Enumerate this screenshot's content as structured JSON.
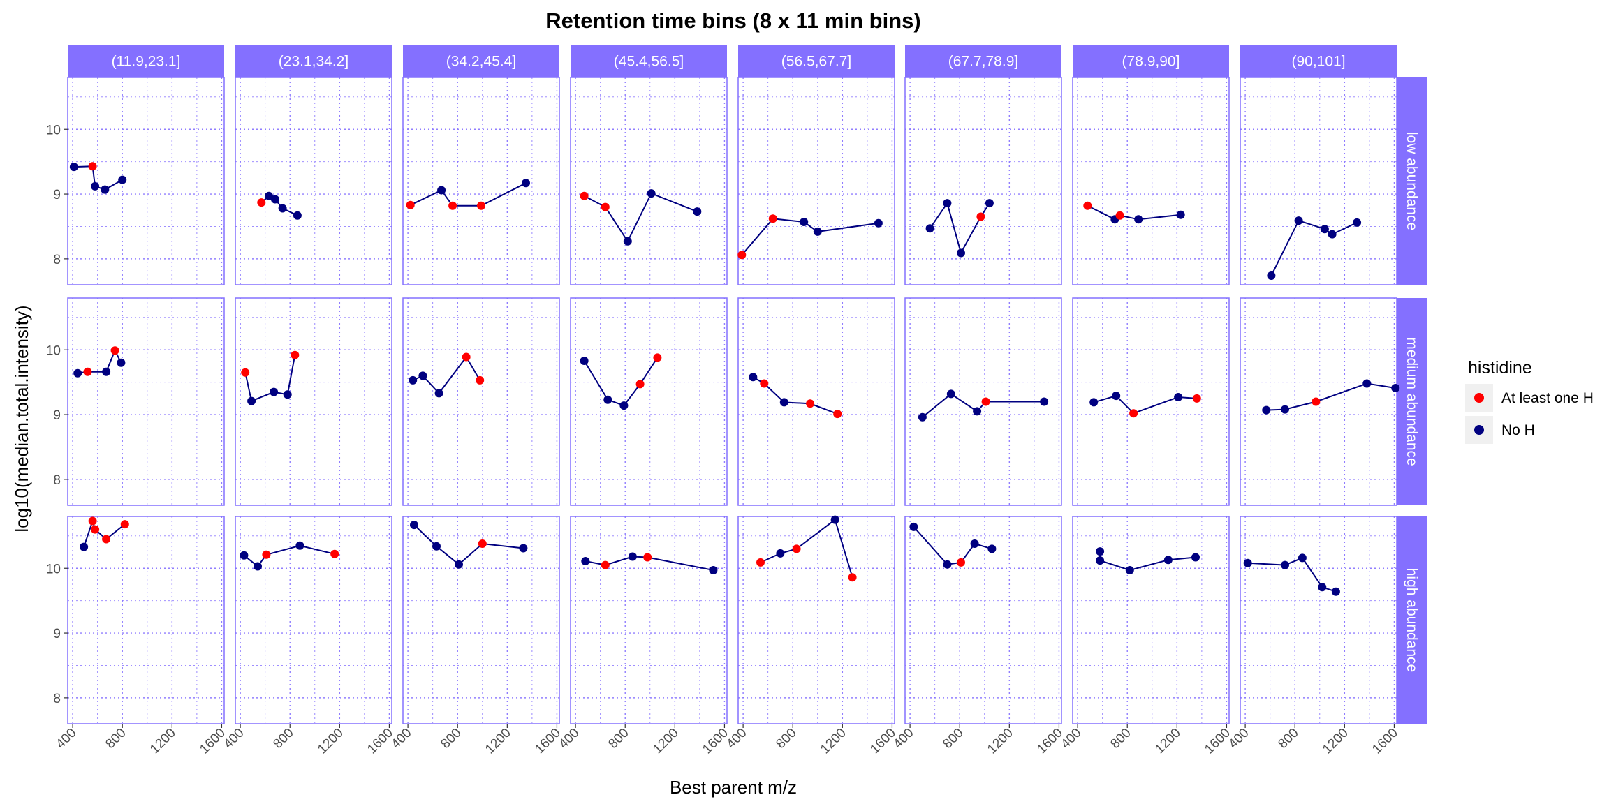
{
  "chart_data": {
    "type": "line",
    "title": "Retention time bins (8 x 11 min bins)",
    "xlabel": "Best parent m/z",
    "ylabel": "log10(median.total.intensity)",
    "xlim": [
      360,
      1620
    ],
    "x_ticks": [
      "400",
      "800",
      "1200",
      "1600"
    ],
    "x_tick_values": [
      400,
      800,
      1200,
      1600
    ],
    "y_ticks": [
      "8",
      "9",
      "10"
    ],
    "y_tick_values": [
      8,
      9,
      10
    ],
    "grid": "dotted",
    "legend": {
      "title": "histidine",
      "position": "right",
      "entries": [
        {
          "label": "At least one H",
          "color": "#ff0000"
        },
        {
          "label": "No H",
          "color": "#000080"
        }
      ]
    },
    "colors": {
      "At least one H": "#ff0000",
      "No H": "#000080",
      "strip": "#8470ff",
      "panel_border": "#8470ff",
      "grid": "#8470ff"
    },
    "columns": [
      "(11.9,23.1]",
      "(23.1,34.2]",
      "(34.2,45.4]",
      "(45.4,56.5]",
      "(56.5,67.7]",
      "(67.7,78.9]",
      "(78.9,90]",
      "(90,101]"
    ],
    "rows": [
      {
        "label": "low abundance",
        "ylim": [
          7.6,
          10.8
        ]
      },
      {
        "label": "medium abundance",
        "ylim": [
          7.6,
          10.8
        ]
      },
      {
        "label": "high abundance",
        "ylim": [
          7.6,
          10.8
        ]
      }
    ],
    "panels": [
      [
        [
          [
            410,
            9.42,
            "No H"
          ],
          [
            560,
            9.43,
            "At least one H"
          ],
          [
            580,
            9.12,
            "No H"
          ],
          [
            660,
            9.07,
            "No H"
          ],
          [
            800,
            9.22,
            "No H"
          ]
        ],
        [
          [
            570,
            8.87,
            "At least one H"
          ],
          [
            630,
            8.97,
            "No H"
          ],
          [
            680,
            8.92,
            "No H"
          ],
          [
            740,
            8.78,
            "No H"
          ],
          [
            860,
            8.67,
            "No H"
          ]
        ],
        [
          [
            420,
            8.83,
            "At least one H"
          ],
          [
            670,
            9.06,
            "No H"
          ],
          [
            760,
            8.82,
            "At least one H"
          ],
          [
            990,
            8.82,
            "At least one H"
          ],
          [
            1350,
            9.17,
            "No H"
          ]
        ],
        [
          [
            470,
            8.97,
            "At least one H"
          ],
          [
            640,
            8.8,
            "At least one H"
          ],
          [
            820,
            8.27,
            "No H"
          ],
          [
            1010,
            9.01,
            "No H"
          ],
          [
            1380,
            8.73,
            "No H"
          ]
        ],
        [
          [
            390,
            8.06,
            "At least one H"
          ],
          [
            640,
            8.62,
            "At least one H"
          ],
          [
            890,
            8.57,
            "No H"
          ],
          [
            1000,
            8.42,
            "No H"
          ],
          [
            1490,
            8.55,
            "No H"
          ]
        ],
        [
          [
            560,
            8.47,
            "No H"
          ],
          [
            700,
            8.86,
            "No H"
          ],
          [
            810,
            8.09,
            "No H"
          ],
          [
            970,
            8.65,
            "At least one H"
          ],
          [
            1040,
            8.86,
            "No H"
          ]
        ],
        [
          [
            480,
            8.82,
            "At least one H"
          ],
          [
            700,
            8.61,
            "No H"
          ],
          [
            740,
            8.67,
            "At least one H"
          ],
          [
            890,
            8.61,
            "No H"
          ],
          [
            1230,
            8.68,
            "No H"
          ]
        ],
        [
          [
            610,
            7.74,
            "No H"
          ],
          [
            830,
            8.59,
            "No H"
          ],
          [
            1040,
            8.46,
            "No H"
          ],
          [
            1100,
            8.38,
            "No H"
          ],
          [
            1300,
            8.56,
            "No H"
          ]
        ]
      ],
      [
        [
          [
            440,
            9.64,
            "No H"
          ],
          [
            520,
            9.66,
            "At least one H"
          ],
          [
            670,
            9.66,
            "No H"
          ],
          [
            740,
            9.99,
            "At least one H"
          ],
          [
            790,
            9.8,
            "No H"
          ]
        ],
        [
          [
            440,
            9.65,
            "At least one H"
          ],
          [
            490,
            9.21,
            "No H"
          ],
          [
            670,
            9.35,
            "No H"
          ],
          [
            780,
            9.31,
            "No H"
          ],
          [
            840,
            9.92,
            "At least one H"
          ]
        ],
        [
          [
            440,
            9.53,
            "No H"
          ],
          [
            520,
            9.6,
            "No H"
          ],
          [
            650,
            9.33,
            "No H"
          ],
          [
            870,
            9.89,
            "At least one H"
          ],
          [
            980,
            9.53,
            "At least one H"
          ]
        ],
        [
          [
            470,
            9.83,
            "No H"
          ],
          [
            660,
            9.23,
            "No H"
          ],
          [
            790,
            9.14,
            "No H"
          ],
          [
            920,
            9.47,
            "At least one H"
          ],
          [
            1060,
            9.88,
            "At least one H"
          ]
        ],
        [
          [
            480,
            9.58,
            "No H"
          ],
          [
            570,
            9.48,
            "At least one H"
          ],
          [
            730,
            9.19,
            "No H"
          ],
          [
            940,
            9.17,
            "At least one H"
          ],
          [
            1160,
            9.01,
            "At least one H"
          ]
        ],
        [
          [
            500,
            8.96,
            "No H"
          ],
          [
            730,
            9.32,
            "No H"
          ],
          [
            940,
            9.05,
            "No H"
          ],
          [
            1010,
            9.2,
            "At least one H"
          ],
          [
            1480,
            9.2,
            "No H"
          ]
        ],
        [
          [
            530,
            9.19,
            "No H"
          ],
          [
            710,
            9.29,
            "No H"
          ],
          [
            850,
            9.02,
            "At least one H"
          ],
          [
            1210,
            9.27,
            "No H"
          ],
          [
            1360,
            9.25,
            "At least one H"
          ]
        ],
        [
          [
            570,
            9.07,
            "No H"
          ],
          [
            720,
            9.08,
            "No H"
          ],
          [
            970,
            9.2,
            "At least one H"
          ],
          [
            1380,
            9.48,
            "No H"
          ],
          [
            1610,
            9.41,
            "No H"
          ]
        ]
      ],
      [
        [
          [
            490,
            10.33,
            "No H"
          ],
          [
            560,
            10.73,
            "At least one H"
          ],
          [
            580,
            10.6,
            "At least one H"
          ],
          [
            670,
            10.45,
            "At least one H"
          ],
          [
            820,
            10.68,
            "At least one H"
          ]
        ],
        [
          [
            430,
            10.2,
            "No H"
          ],
          [
            540,
            10.03,
            "No H"
          ],
          [
            610,
            10.21,
            "At least one H"
          ],
          [
            880,
            10.35,
            "No H"
          ],
          [
            1160,
            10.22,
            "At least one H"
          ]
        ],
        [
          [
            450,
            10.67,
            "No H"
          ],
          [
            630,
            10.34,
            "No H"
          ],
          [
            810,
            10.06,
            "No H"
          ],
          [
            1000,
            10.38,
            "At least one H"
          ],
          [
            1330,
            10.31,
            "No H"
          ]
        ],
        [
          [
            480,
            10.11,
            "No H"
          ],
          [
            640,
            10.05,
            "At least one H"
          ],
          [
            860,
            10.18,
            "No H"
          ],
          [
            980,
            10.17,
            "At least one H"
          ],
          [
            1510,
            9.97,
            "No H"
          ]
        ],
        [
          [
            540,
            10.09,
            "At least one H"
          ],
          [
            700,
            10.23,
            "No H"
          ],
          [
            830,
            10.3,
            "At least one H"
          ],
          [
            1140,
            10.75,
            "No H"
          ],
          [
            1280,
            9.86,
            "At least one H"
          ]
        ],
        [
          [
            430,
            10.64,
            "No H"
          ],
          [
            700,
            10.06,
            "No H"
          ],
          [
            810,
            10.09,
            "At least one H"
          ],
          [
            920,
            10.38,
            "No H"
          ],
          [
            1060,
            10.3,
            "No H"
          ]
        ],
        [
          [
            580,
            10.26,
            "No H"
          ],
          [
            580,
            10.12,
            "No H"
          ],
          [
            820,
            9.97,
            "No H"
          ],
          [
            1130,
            10.13,
            "No H"
          ],
          [
            1350,
            10.17,
            "No H"
          ]
        ],
        [
          [
            420,
            10.08,
            "No H"
          ],
          [
            720,
            10.05,
            "No H"
          ],
          [
            860,
            10.16,
            "No H"
          ],
          [
            1020,
            9.71,
            "No H"
          ],
          [
            1130,
            9.64,
            "No H"
          ]
        ]
      ]
    ]
  }
}
